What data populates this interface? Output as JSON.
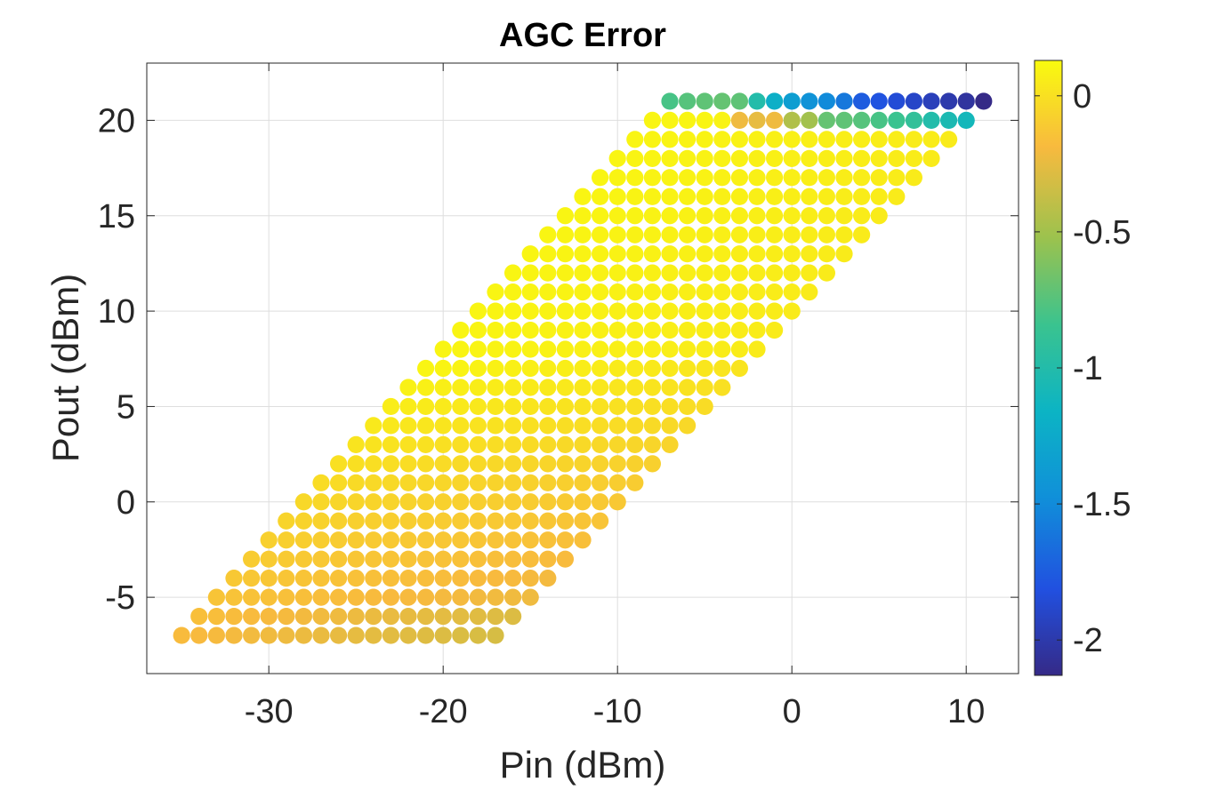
{
  "chart_data": {
    "type": "scatter",
    "title": "AGC Error",
    "xlabel": "Pin (dBm)",
    "ylabel": "Pout (dBm)",
    "xlim": [
      -37,
      13
    ],
    "ylim": [
      -9,
      23
    ],
    "xticks": [
      -30,
      -20,
      -10,
      0,
      10
    ],
    "xtick_labels": [
      "-30",
      "-20",
      "-10",
      "0",
      "10"
    ],
    "yticks": [
      -5,
      0,
      5,
      10,
      15,
      20
    ],
    "ytick_labels": [
      "-5",
      "0",
      "5",
      "10",
      "15",
      "20"
    ],
    "grid": true,
    "colormap": "parula",
    "colorbar": {
      "clim": [
        -2.13,
        0.13
      ],
      "ticks": [
        0,
        -0.5,
        -1,
        -1.5,
        -2
      ],
      "tick_labels": [
        "0",
        "-0.5",
        "-1",
        "-1.5",
        "-2"
      ],
      "location": "right"
    },
    "grid_spec": {
      "pout_range": [
        -7,
        21
      ],
      "pin_start_at_pout_min": -35,
      "pin_slope_per_pout": 1,
      "points_per_row": 19,
      "pout_step": 1,
      "pin_step": 1
    },
    "color_value_summary": {
      "body_low_pout_edge_value": -0.18,
      "body_high_value": 0.1,
      "row_20": [
        0.1,
        0.1,
        0.1,
        0.1,
        0.09,
        -0.22,
        -0.25,
        -0.22,
        -0.45,
        -0.5,
        -0.7,
        -0.72,
        -0.75,
        -0.8,
        -0.85,
        -0.9,
        -1.0,
        -1.05,
        -1.1
      ],
      "row_21": [
        -0.8,
        -0.75,
        -0.72,
        -0.7,
        -0.72,
        -1.0,
        -1.2,
        -1.35,
        -1.45,
        -1.5,
        -1.6,
        -1.75,
        -1.8,
        -1.85,
        -1.9,
        -1.95,
        -2.0,
        -2.05,
        -2.13
      ]
    }
  }
}
